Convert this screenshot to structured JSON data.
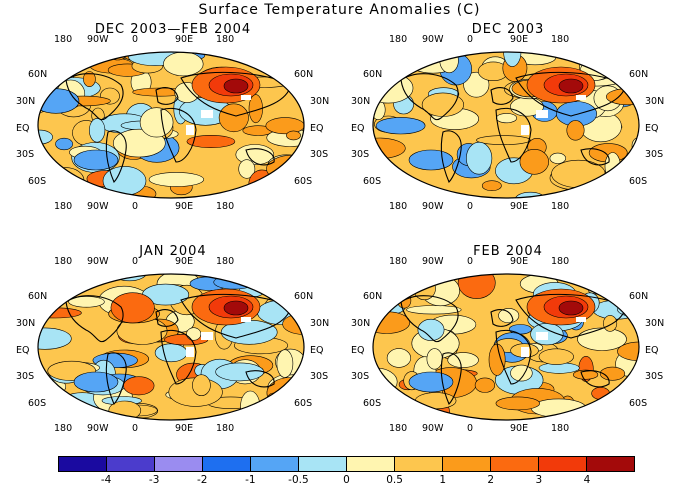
{
  "title": "Surface Temperature Anomalies (C)",
  "panels": [
    {
      "title": "DEC 2003—FEB 2004"
    },
    {
      "title": "DEC 2003"
    },
    {
      "title": "JAN 2004"
    },
    {
      "title": "FEB 2004"
    }
  ],
  "lon_ticks": [
    "180",
    "90W",
    "0",
    "90E",
    "180"
  ],
  "lat_ticks_left": [
    "60N",
    "30N",
    "EQ",
    "30S",
    "60S"
  ],
  "lat_ticks_right": [
    "60N",
    "30N",
    "EQ",
    "30S",
    "60S"
  ],
  "colorbar": {
    "colors": [
      "#1a0aa0",
      "#4b3ccc",
      "#9a8cf0",
      "#1e6ff0",
      "#55a5f5",
      "#a8e4f5",
      "#fff5b0",
      "#fdc64e",
      "#fb9b1b",
      "#fb6a10",
      "#f23a0a",
      "#a30a0a"
    ],
    "labels": [
      "-4",
      "-3",
      "-2",
      "-1",
      "-0.5",
      "0",
      "0.5",
      "1",
      "2",
      "3",
      "4"
    ]
  }
}
